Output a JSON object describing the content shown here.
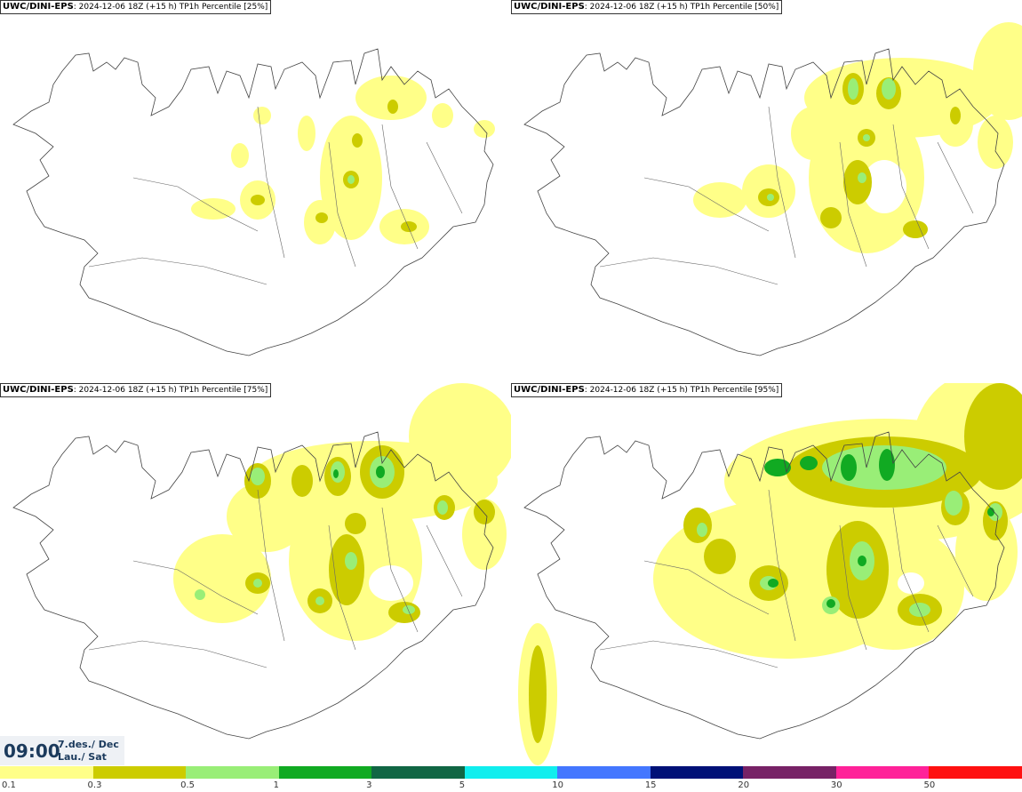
{
  "panels": [
    {
      "model": "UWC/DINI-EPS",
      "run": ": 2024-12-06 18Z (+15 h)",
      "field": " TP1h Percentile [25%]"
    },
    {
      "model": "UWC/DINI-EPS",
      "run": ": 2024-12-06 18Z (+15 h)",
      "field": " TP1h Percentile [50%]"
    },
    {
      "model": "UWC/DINI-EPS",
      "run": ": 2024-12-06 18Z (+15 h)",
      "field": " TP1h Percentile [75%]"
    },
    {
      "model": "UWC/DINI-EPS",
      "run": ": 2024-12-06 18Z (+15 h)",
      "field": " TP1h Percentile [95%]"
    }
  ],
  "valid_time": {
    "time": "09:00",
    "date_line": "7.des./ Dec",
    "day_line": "Lau./ Sat"
  },
  "legend": {
    "labels": [
      "0.1",
      "0.3",
      "0.5",
      "1",
      "3",
      "5",
      "10",
      "15",
      "20",
      "30",
      "50"
    ],
    "colors": [
      "#ffff88",
      "#cccc00",
      "#99ee77",
      "#11aa22",
      "#116644",
      "#11eeee",
      "#4477ff",
      "#001177",
      "#772266",
      "#ff2299",
      "#ff1111"
    ]
  },
  "colors": {
    "light": "#ffff88",
    "olive": "#cccc00",
    "lightgreen": "#99ee77",
    "green": "#11aa22",
    "coast": "#444444"
  }
}
